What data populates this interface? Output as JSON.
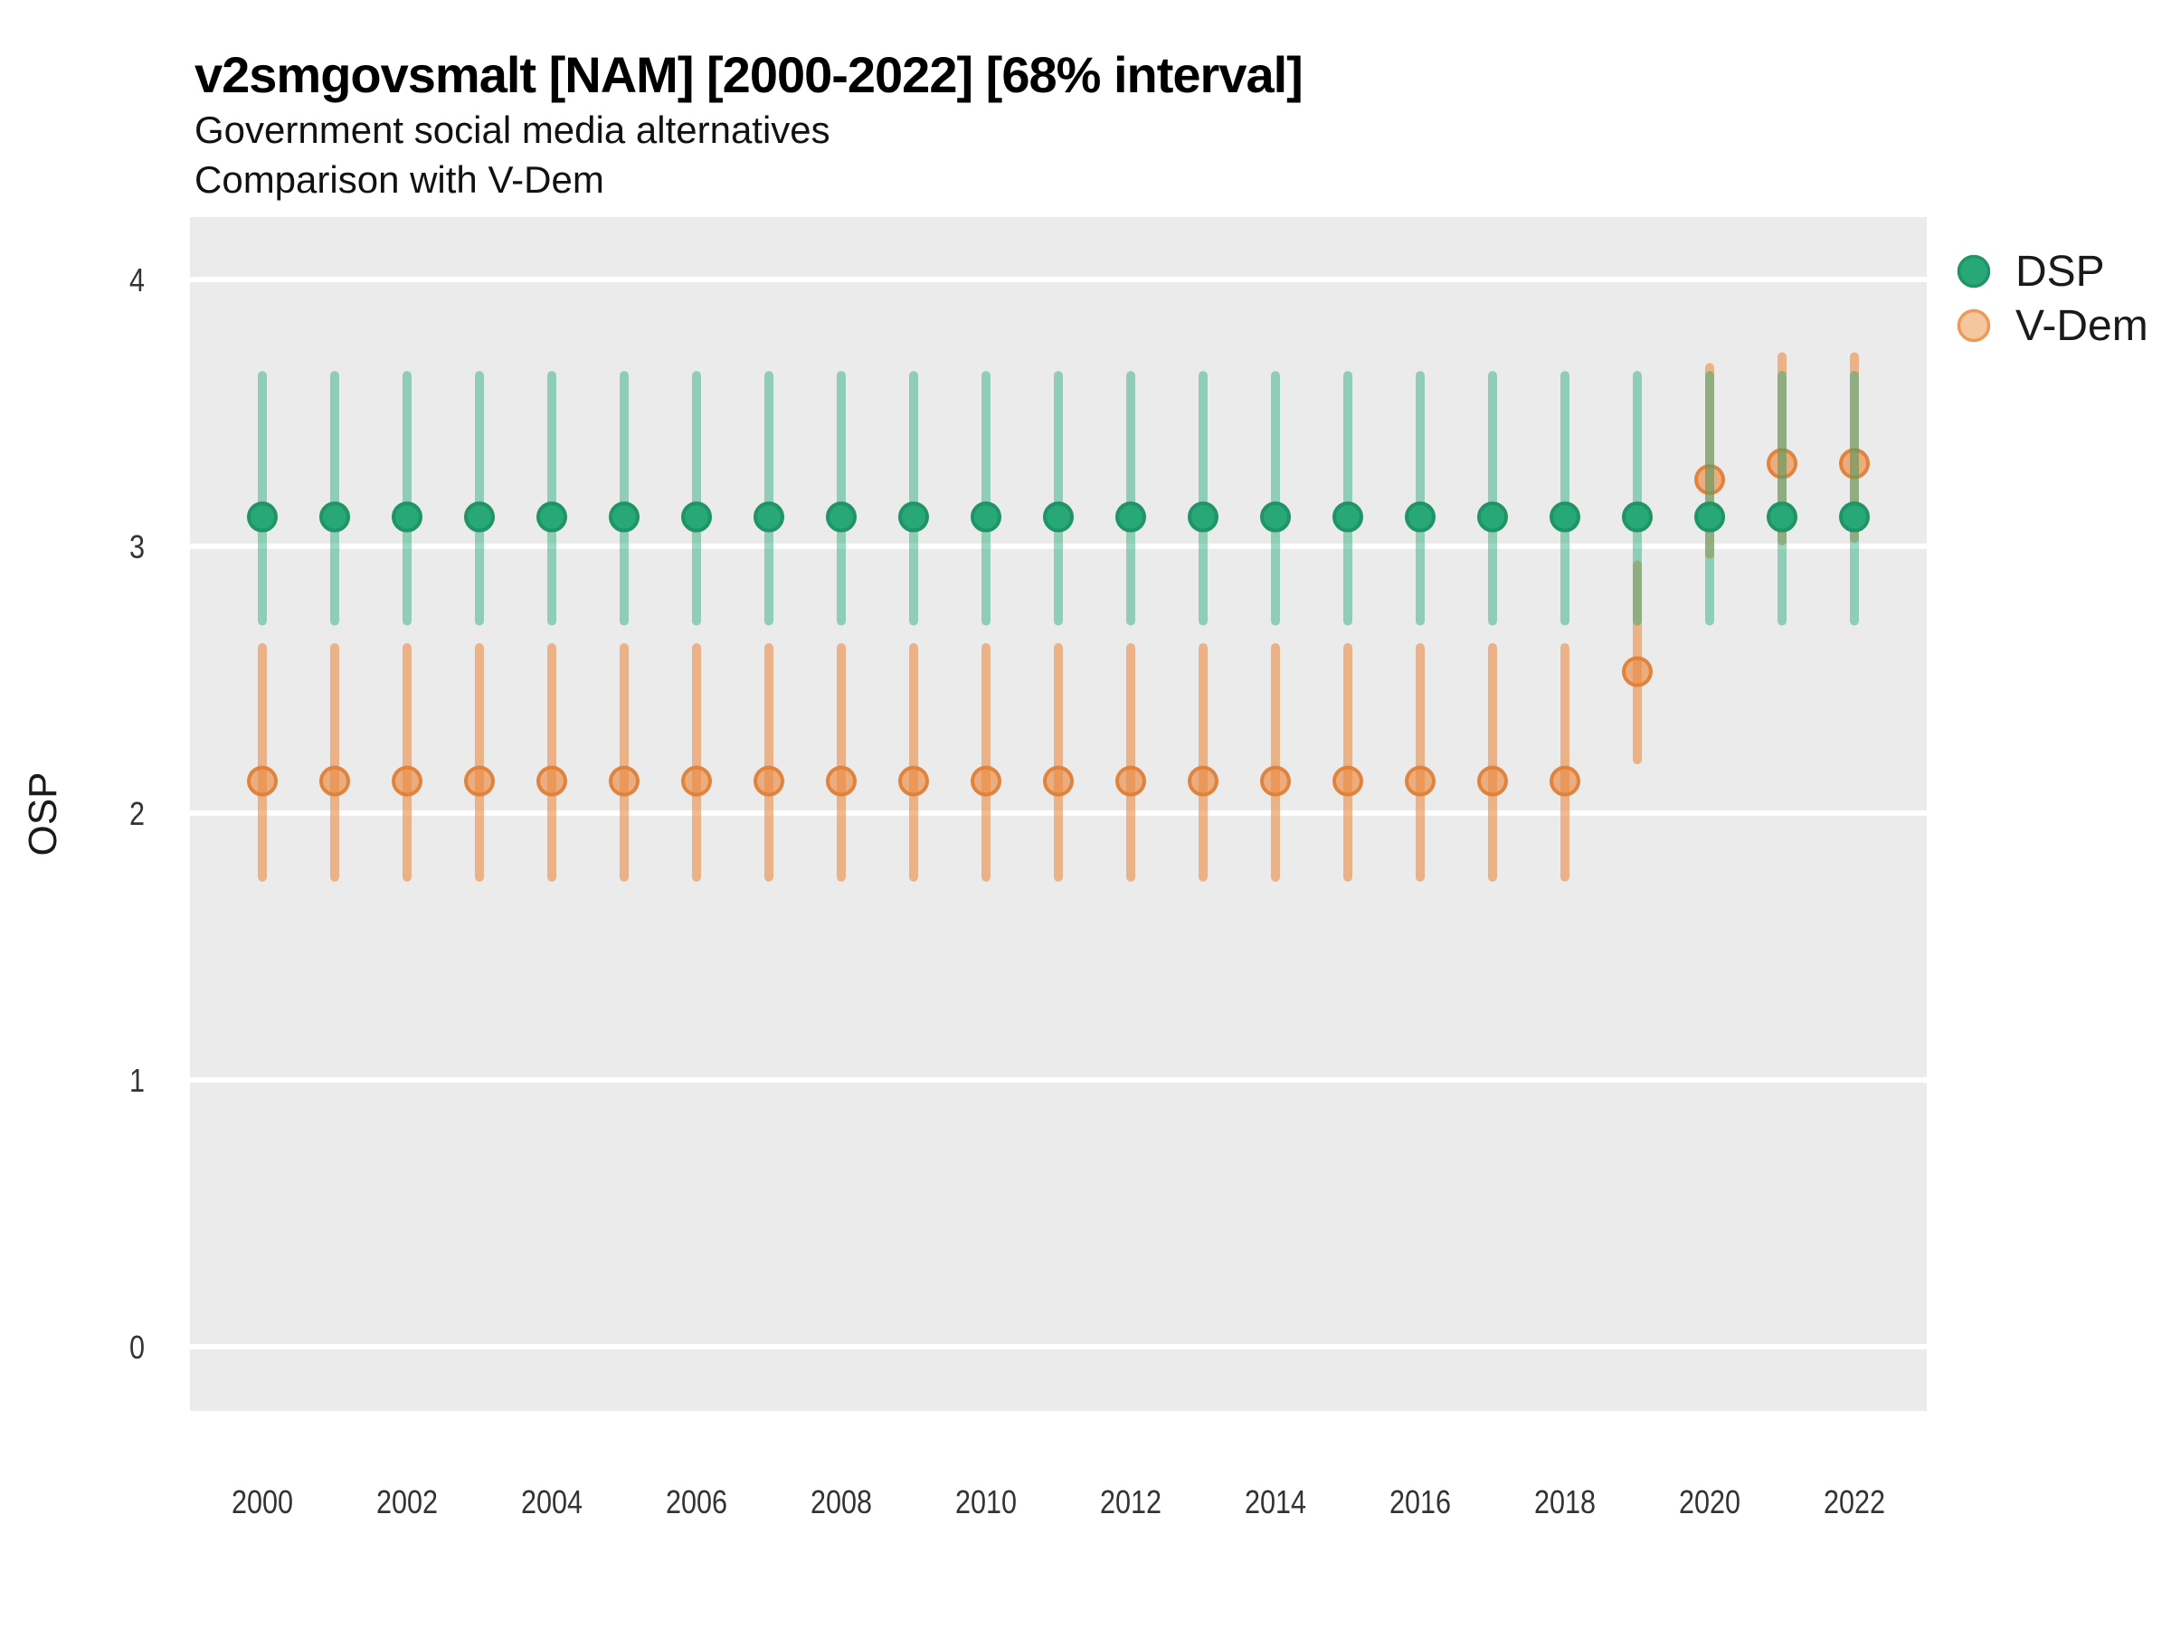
{
  "chart_data": {
    "type": "pointrange",
    "title": "v2smgovsmalt [NAM] [2000-2022] [68% interval]",
    "subtitle_line1": "Government social media alternatives",
    "subtitle_line2": "Comparison with V-Dem",
    "ylabel": "OSP",
    "xlabel": "",
    "interval_label": "68% interval",
    "country": "NAM",
    "variable": "v2smgovsmalt",
    "panel_bg": "#EBEBEB",
    "grid_color": "#FFFFFF",
    "grid": "horizontal-major-only",
    "axis_ticks_visible": false,
    "ylim": [
      -0.24,
      4.24
    ],
    "yticks": [
      0,
      1,
      2,
      3,
      4
    ],
    "xticks": [
      2000,
      2002,
      2004,
      2006,
      2008,
      2010,
      2012,
      2014,
      2016,
      2018,
      2020,
      2022
    ],
    "x_range_years": [
      2000,
      2022
    ],
    "legend_position": "right",
    "legend": [
      {
        "series": "dsp",
        "label": "DSP",
        "marker_fill": "#29A877",
        "marker_stroke": "#1F9466"
      },
      {
        "series": "vdem",
        "label": "V-Dem",
        "marker_fill": "#F5C79E",
        "marker_stroke": "#EE9A56"
      }
    ],
    "series": [
      {
        "id": "vdem",
        "name": "V-Dem",
        "color": "#EB8B44",
        "bar_color": "rgba(235,139,68,0.6)",
        "point_fill": "rgba(235,139,68,0.65)",
        "point_stroke": "rgba(223,128,55,0.95)",
        "points": [
          {
            "x": 2000,
            "y": 2.12,
            "lo": 1.76,
            "hi": 2.62
          },
          {
            "x": 2001,
            "y": 2.12,
            "lo": 1.76,
            "hi": 2.62
          },
          {
            "x": 2002,
            "y": 2.12,
            "lo": 1.76,
            "hi": 2.62
          },
          {
            "x": 2003,
            "y": 2.12,
            "lo": 1.76,
            "hi": 2.62
          },
          {
            "x": 2004,
            "y": 2.12,
            "lo": 1.76,
            "hi": 2.62
          },
          {
            "x": 2005,
            "y": 2.12,
            "lo": 1.76,
            "hi": 2.62
          },
          {
            "x": 2006,
            "y": 2.12,
            "lo": 1.76,
            "hi": 2.62
          },
          {
            "x": 2007,
            "y": 2.12,
            "lo": 1.76,
            "hi": 2.62
          },
          {
            "x": 2008,
            "y": 2.12,
            "lo": 1.76,
            "hi": 2.62
          },
          {
            "x": 2009,
            "y": 2.12,
            "lo": 1.76,
            "hi": 2.62
          },
          {
            "x": 2010,
            "y": 2.12,
            "lo": 1.76,
            "hi": 2.62
          },
          {
            "x": 2011,
            "y": 2.12,
            "lo": 1.76,
            "hi": 2.62
          },
          {
            "x": 2012,
            "y": 2.12,
            "lo": 1.76,
            "hi": 2.62
          },
          {
            "x": 2013,
            "y": 2.12,
            "lo": 1.76,
            "hi": 2.62
          },
          {
            "x": 2014,
            "y": 2.12,
            "lo": 1.76,
            "hi": 2.62
          },
          {
            "x": 2015,
            "y": 2.12,
            "lo": 1.76,
            "hi": 2.62
          },
          {
            "x": 2016,
            "y": 2.12,
            "lo": 1.76,
            "hi": 2.62
          },
          {
            "x": 2017,
            "y": 2.12,
            "lo": 1.76,
            "hi": 2.62
          },
          {
            "x": 2018,
            "y": 2.12,
            "lo": 1.76,
            "hi": 2.62
          },
          {
            "x": 2019,
            "y": 2.53,
            "lo": 2.2,
            "hi": 2.93
          },
          {
            "x": 2020,
            "y": 3.25,
            "lo": 2.97,
            "hi": 3.67
          },
          {
            "x": 2021,
            "y": 3.31,
            "lo": 3.02,
            "hi": 3.71
          },
          {
            "x": 2022,
            "y": 3.31,
            "lo": 3.03,
            "hi": 3.71
          }
        ]
      },
      {
        "id": "dsp",
        "name": "DSP",
        "color": "#22A877",
        "bar_color": "rgba(34,168,119,0.45)",
        "point_fill": "#29A877",
        "point_stroke": "#1F9466",
        "points": [
          {
            "x": 2000,
            "y": 3.11,
            "lo": 2.72,
            "hi": 3.64
          },
          {
            "x": 2001,
            "y": 3.11,
            "lo": 2.72,
            "hi": 3.64
          },
          {
            "x": 2002,
            "y": 3.11,
            "lo": 2.72,
            "hi": 3.64
          },
          {
            "x": 2003,
            "y": 3.11,
            "lo": 2.72,
            "hi": 3.64
          },
          {
            "x": 2004,
            "y": 3.11,
            "lo": 2.72,
            "hi": 3.64
          },
          {
            "x": 2005,
            "y": 3.11,
            "lo": 2.72,
            "hi": 3.64
          },
          {
            "x": 2006,
            "y": 3.11,
            "lo": 2.72,
            "hi": 3.64
          },
          {
            "x": 2007,
            "y": 3.11,
            "lo": 2.72,
            "hi": 3.64
          },
          {
            "x": 2008,
            "y": 3.11,
            "lo": 2.72,
            "hi": 3.64
          },
          {
            "x": 2009,
            "y": 3.11,
            "lo": 2.72,
            "hi": 3.64
          },
          {
            "x": 2010,
            "y": 3.11,
            "lo": 2.72,
            "hi": 3.64
          },
          {
            "x": 2011,
            "y": 3.11,
            "lo": 2.72,
            "hi": 3.64
          },
          {
            "x": 2012,
            "y": 3.11,
            "lo": 2.72,
            "hi": 3.64
          },
          {
            "x": 2013,
            "y": 3.11,
            "lo": 2.72,
            "hi": 3.64
          },
          {
            "x": 2014,
            "y": 3.11,
            "lo": 2.72,
            "hi": 3.64
          },
          {
            "x": 2015,
            "y": 3.11,
            "lo": 2.72,
            "hi": 3.64
          },
          {
            "x": 2016,
            "y": 3.11,
            "lo": 2.72,
            "hi": 3.64
          },
          {
            "x": 2017,
            "y": 3.11,
            "lo": 2.72,
            "hi": 3.64
          },
          {
            "x": 2018,
            "y": 3.11,
            "lo": 2.72,
            "hi": 3.64
          },
          {
            "x": 2019,
            "y": 3.11,
            "lo": 2.72,
            "hi": 3.64
          },
          {
            "x": 2020,
            "y": 3.11,
            "lo": 2.72,
            "hi": 3.64
          },
          {
            "x": 2021,
            "y": 3.11,
            "lo": 2.72,
            "hi": 3.64
          },
          {
            "x": 2022,
            "y": 3.11,
            "lo": 2.72,
            "hi": 3.64
          }
        ]
      }
    ]
  }
}
